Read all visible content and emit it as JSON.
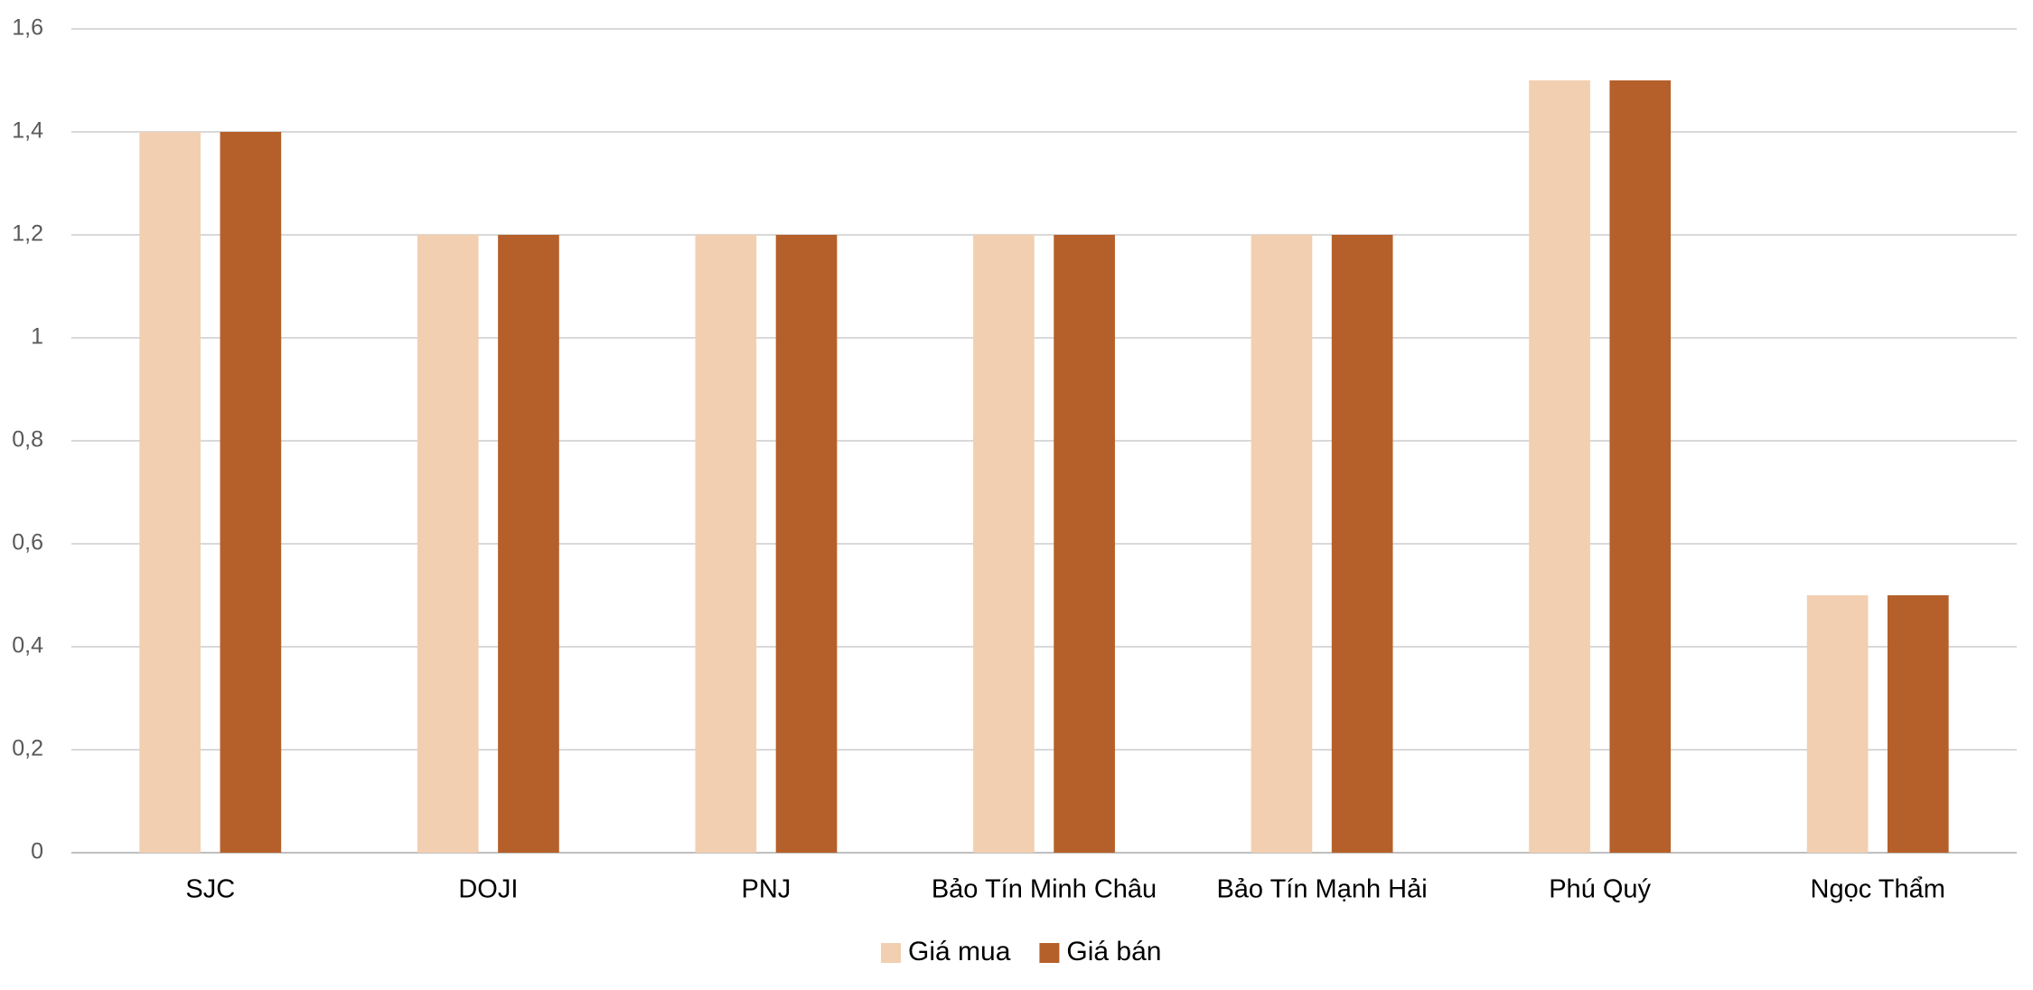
{
  "chart_data": {
    "type": "bar",
    "categories": [
      "SJC",
      "DOJI",
      "PNJ",
      "Bảo Tín Minh Châu",
      "Bảo Tín Mạnh Hải",
      "Phú Quý",
      "Ngọc Thẩm"
    ],
    "series": [
      {
        "name": "Giá mua",
        "color": "#f2cfb1",
        "values": [
          1.4,
          1.2,
          1.2,
          1.2,
          1.2,
          1.5,
          0.5
        ]
      },
      {
        "name": "Giá bán",
        "color": "#b5602a",
        "values": [
          1.4,
          1.2,
          1.2,
          1.2,
          1.2,
          1.5,
          0.5
        ]
      }
    ],
    "ylim": [
      0,
      1.6
    ],
    "yticks": [
      0,
      {
        "value": 0.2,
        "label": "0,2"
      },
      {
        "value": 0.4,
        "label": "0,4"
      },
      {
        "value": 0.6,
        "label": "0,6"
      },
      {
        "value": 0.8,
        "label": "0,8"
      },
      1,
      {
        "value": 1.2,
        "label": "1,2"
      },
      {
        "value": 1.4,
        "label": "1,4"
      },
      {
        "value": 1.6,
        "label": "1,6"
      }
    ],
    "grid": true,
    "legend": "bottom"
  }
}
